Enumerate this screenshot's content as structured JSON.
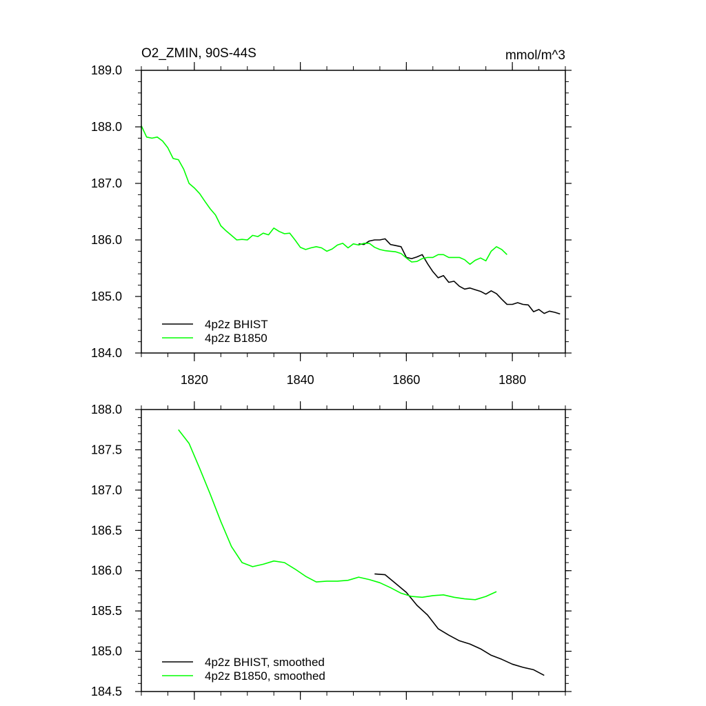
{
  "chart_data": [
    {
      "type": "line",
      "title": "O2_ZMIN, 90S-44S",
      "units": "mmol/m^3",
      "xlim": [
        1810,
        1890
      ],
      "ylim": [
        184.0,
        189.0
      ],
      "x_ticks": [
        1820,
        1840,
        1860,
        1880
      ],
      "x_tick_labels": [
        "1820",
        "1840",
        "1860",
        "1880"
      ],
      "y_ticks": [
        184.0,
        185.0,
        186.0,
        187.0,
        188.0,
        189.0
      ],
      "y_tick_labels": [
        "184.0",
        "185.0",
        "186.0",
        "187.0",
        "188.0",
        "189.0"
      ],
      "legend_position": "bottom-left",
      "series": [
        {
          "name": "4p2z BHIST",
          "color": "#000000",
          "x": [
            1851,
            1852,
            1853,
            1854,
            1855,
            1856,
            1857,
            1858,
            1859,
            1860,
            1861,
            1862,
            1863,
            1864,
            1865,
            1866,
            1867,
            1868,
            1869,
            1870,
            1871,
            1872,
            1873,
            1874,
            1875,
            1876,
            1877,
            1878,
            1879,
            1880,
            1881,
            1882,
            1883,
            1884,
            1885,
            1886,
            1887,
            1888,
            1889
          ],
          "y": [
            185.93,
            185.92,
            185.98,
            186.0,
            186.0,
            186.02,
            185.92,
            185.9,
            185.88,
            185.69,
            185.67,
            185.7,
            185.74,
            185.58,
            185.44,
            185.33,
            185.37,
            185.25,
            185.27,
            185.18,
            185.13,
            185.15,
            185.12,
            185.09,
            185.04,
            185.1,
            185.05,
            184.95,
            184.86,
            184.86,
            184.89,
            184.86,
            184.85,
            184.73,
            184.77,
            184.7,
            184.74,
            184.72,
            184.69
          ]
        },
        {
          "name": "4p2z B1850",
          "color": "#00ff00",
          "x": [
            1810,
            1811,
            1812,
            1813,
            1814,
            1815,
            1816,
            1817,
            1818,
            1819,
            1820,
            1821,
            1822,
            1823,
            1824,
            1825,
            1826,
            1827,
            1828,
            1829,
            1830,
            1831,
            1832,
            1833,
            1834,
            1835,
            1836,
            1837,
            1838,
            1839,
            1840,
            1841,
            1842,
            1843,
            1844,
            1845,
            1846,
            1847,
            1848,
            1849,
            1850,
            1851,
            1852,
            1853,
            1854,
            1855,
            1856,
            1857,
            1858,
            1859,
            1860,
            1861,
            1862,
            1863,
            1864,
            1865,
            1866,
            1867,
            1868,
            1869,
            1870,
            1871,
            1872,
            1873,
            1874,
            1875,
            1876,
            1877,
            1878,
            1879
          ],
          "y": [
            188.02,
            187.82,
            187.8,
            187.82,
            187.75,
            187.63,
            187.44,
            187.42,
            187.25,
            187.0,
            186.92,
            186.82,
            186.68,
            186.55,
            186.44,
            186.25,
            186.16,
            186.08,
            186.0,
            186.01,
            186.0,
            186.08,
            186.06,
            186.12,
            186.09,
            186.21,
            186.15,
            186.11,
            186.12,
            186.0,
            185.87,
            185.83,
            185.86,
            185.88,
            185.86,
            185.8,
            185.84,
            185.91,
            185.94,
            185.86,
            185.93,
            185.91,
            185.94,
            185.94,
            185.87,
            185.83,
            185.81,
            185.8,
            185.79,
            185.76,
            185.68,
            185.61,
            185.62,
            185.67,
            185.69,
            185.69,
            185.74,
            185.74,
            185.69,
            185.69,
            185.69,
            185.65,
            185.57,
            185.64,
            185.68,
            185.63,
            185.8,
            185.88,
            185.83,
            185.74
          ]
        }
      ]
    },
    {
      "type": "line",
      "xlim": [
        1810,
        1890
      ],
      "ylim": [
        184.5,
        188.0
      ],
      "x_ticks": [
        1820,
        1840,
        1860,
        1880
      ],
      "y_ticks": [
        184.5,
        185.0,
        185.5,
        186.0,
        186.5,
        187.0,
        187.5,
        188.0
      ],
      "y_tick_labels": [
        "184.5",
        "185.0",
        "185.5",
        "186.0",
        "186.5",
        "187.0",
        "187.5",
        "188.0"
      ],
      "legend_position": "bottom-left",
      "series": [
        {
          "name": "4p2z BHIST, smoothed",
          "color": "#000000",
          "x": [
            1854,
            1856,
            1858,
            1860,
            1862,
            1864,
            1866,
            1868,
            1870,
            1872,
            1874,
            1876,
            1878,
            1880,
            1882,
            1884,
            1886
          ],
          "y": [
            185.96,
            185.95,
            185.84,
            185.73,
            185.57,
            185.45,
            185.28,
            185.2,
            185.13,
            185.09,
            185.03,
            184.95,
            184.9,
            184.84,
            184.8,
            184.77,
            184.7
          ]
        },
        {
          "name": "4p2z B1850, smoothed",
          "color": "#00ff00",
          "x": [
            1817,
            1819,
            1821,
            1823,
            1825,
            1827,
            1829,
            1831,
            1833,
            1835,
            1837,
            1839,
            1841,
            1843,
            1845,
            1847,
            1849,
            1851,
            1853,
            1855,
            1857,
            1859,
            1861,
            1863,
            1865,
            1867,
            1869,
            1871,
            1873,
            1875,
            1877
          ],
          "y": [
            187.75,
            187.58,
            187.27,
            186.95,
            186.61,
            186.3,
            186.1,
            186.05,
            186.08,
            186.12,
            186.1,
            186.02,
            185.93,
            185.86,
            185.87,
            185.87,
            185.88,
            185.92,
            185.89,
            185.85,
            185.79,
            185.72,
            185.68,
            185.67,
            185.69,
            185.7,
            185.67,
            185.65,
            185.64,
            185.68,
            185.74
          ]
        }
      ]
    }
  ]
}
